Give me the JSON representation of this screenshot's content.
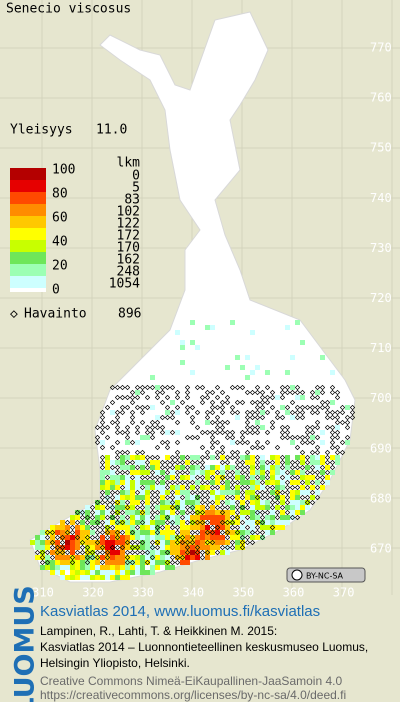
{
  "header": {
    "title": "Senecio viscosus"
  },
  "stats": {
    "label": "Yleisyys",
    "value": "11.0"
  },
  "legend": {
    "scale_labels": [
      100,
      80,
      60,
      40,
      20,
      0
    ],
    "count_header": "lkm",
    "counts": [
      0,
      5,
      83,
      102,
      122,
      172,
      170,
      162,
      248,
      1054
    ],
    "colors": [
      "#b40000",
      "#e60000",
      "#ff4a00",
      "#ff8c00",
      "#ffc800",
      "#ffff00",
      "#c8ff00",
      "#6ee65a",
      "#9cffb4",
      "#cdffff",
      "#ffffff"
    ]
  },
  "observations": {
    "label": "Havainto",
    "count": 896
  },
  "axes": {
    "northing": [
      770,
      760,
      750,
      740,
      730,
      720,
      710,
      700,
      690,
      680,
      670
    ],
    "easting": [
      310,
      320,
      330,
      340,
      350,
      360,
      370
    ]
  },
  "license_badge": "BY-NC-SA",
  "footer": {
    "logo": "LUOMUS",
    "link": "Kasviatlas 2014, www.luomus.fi/kasviatlas",
    "citation": [
      "Lampinen, R., Lahti, T. & Heikkinen M. 2015:",
      "Kasviatlas 2014 – Luonnontieteellinen keskusmuseo Luomus,",
      "Helsingin Yliopisto, Helsinki."
    ],
    "license": [
      "Creative Commons Nimeä-EiKaupallinen-JaaSamoin 4.0",
      "https://creativecommons.org/licenses/by-nc-sa/4.0/deed.fi"
    ]
  }
}
